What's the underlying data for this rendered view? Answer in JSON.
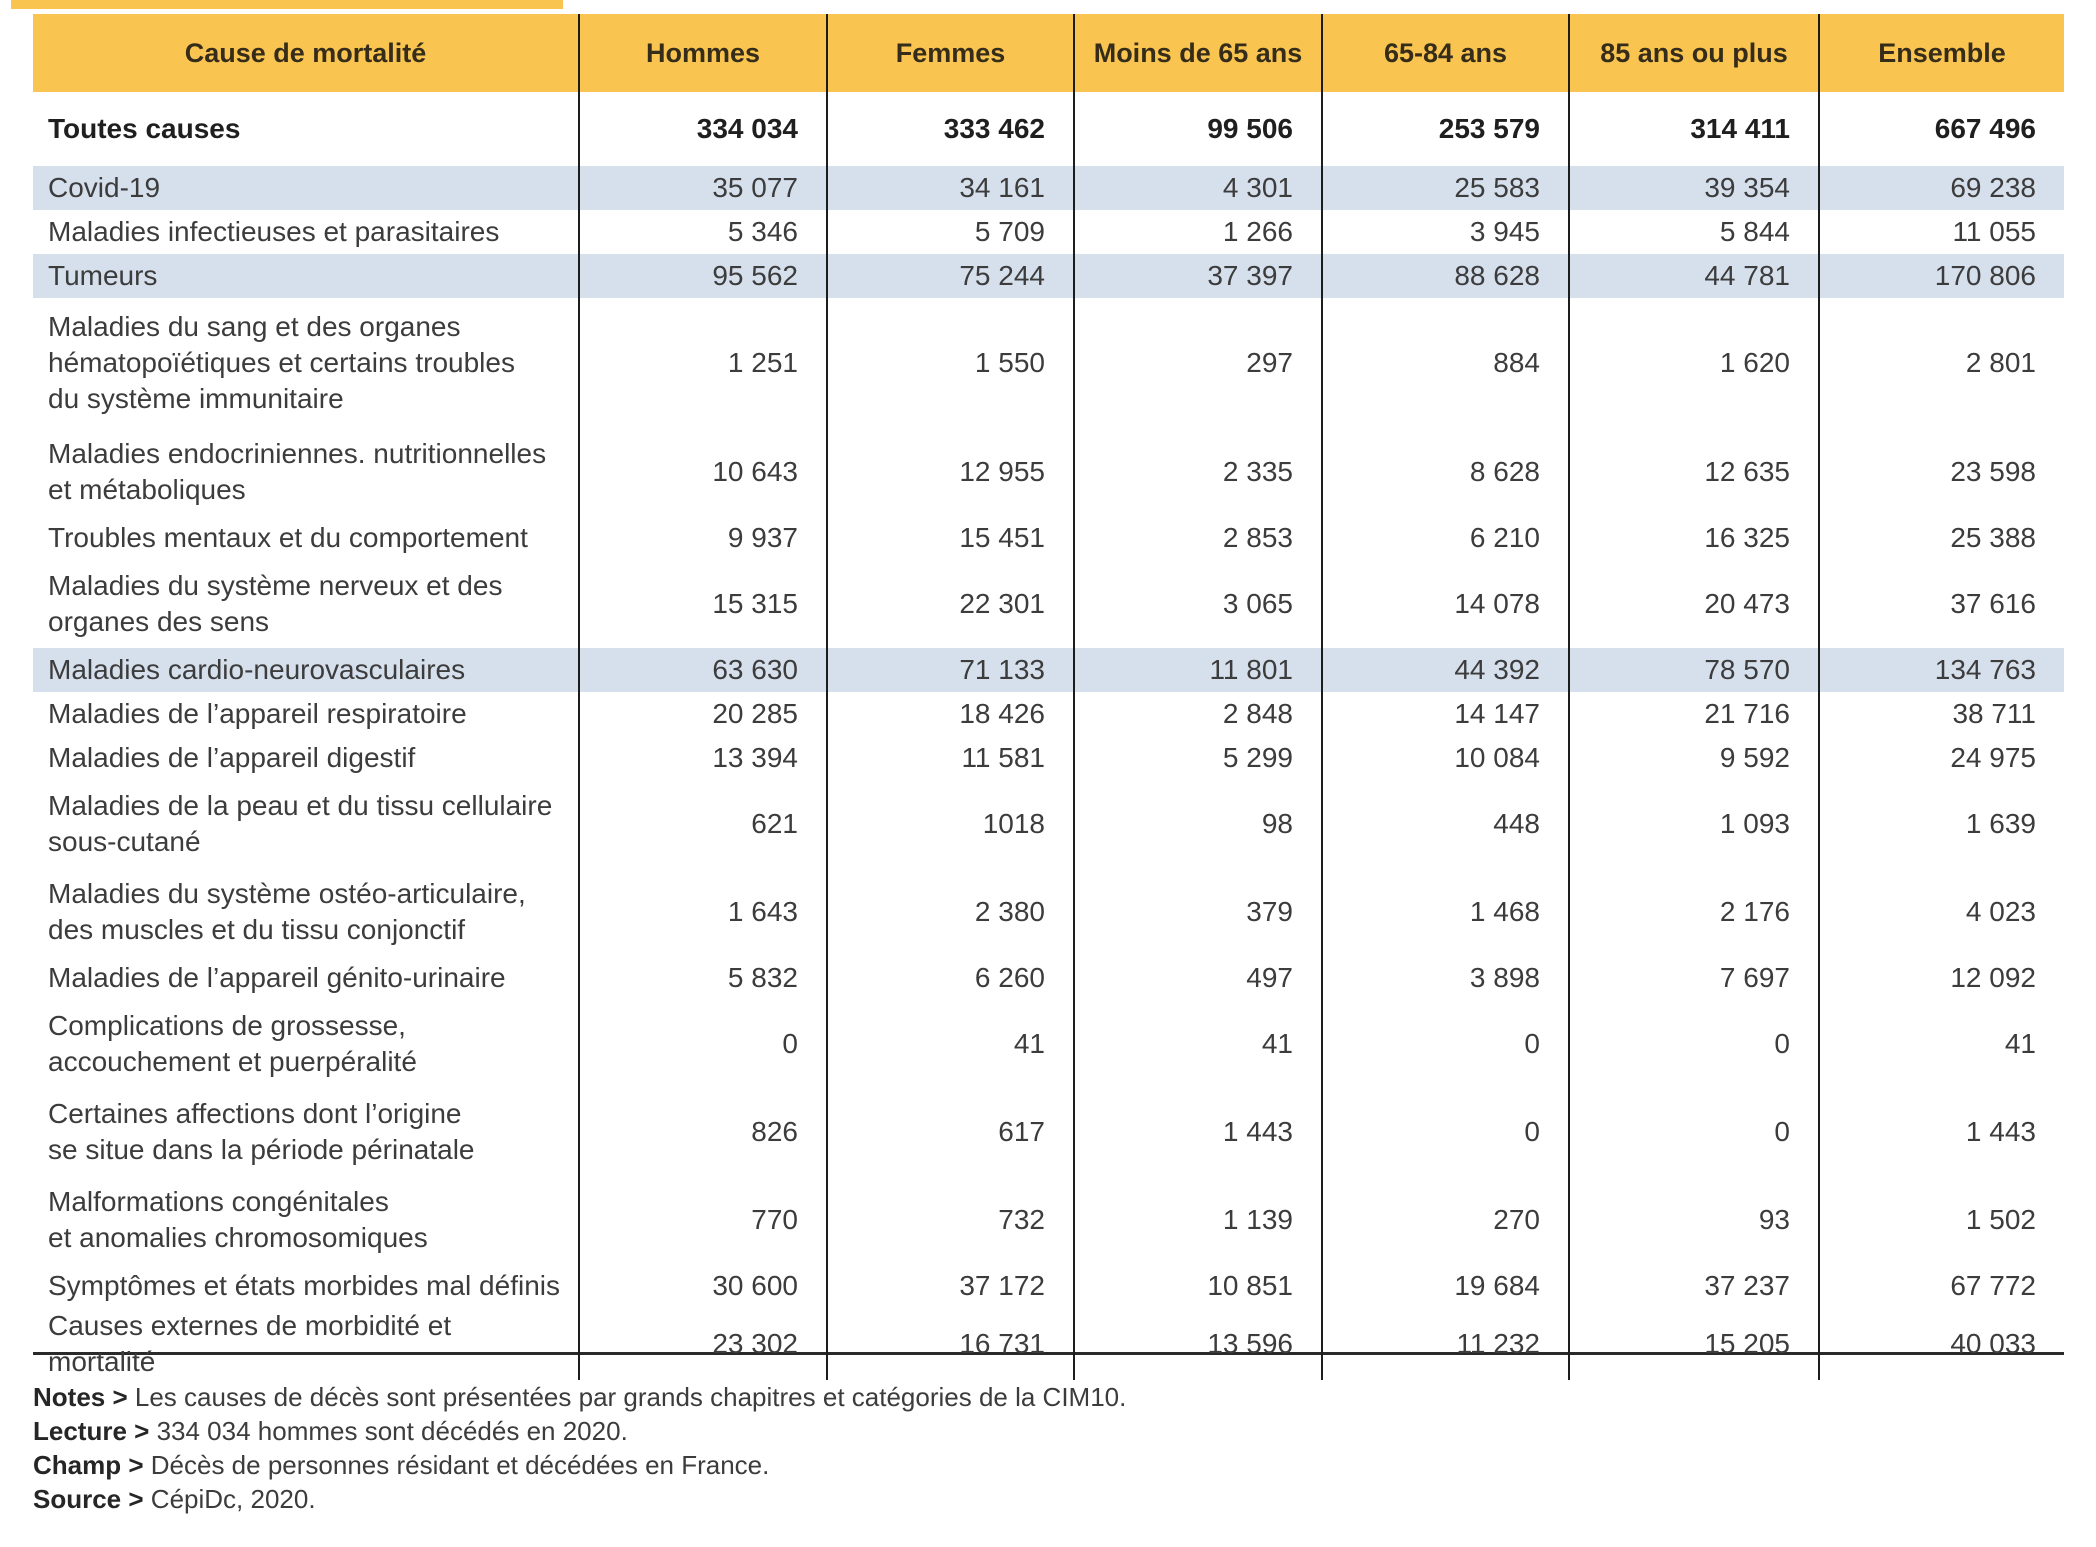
{
  "colors": {
    "header_bg": "#F9C550",
    "highlight_row_bg": "#D6DFEC",
    "accent_strip": "#F9C550",
    "grid_line": "#1d1d1d"
  },
  "table": {
    "columns": [
      "Cause de mortalité",
      "Hommes",
      "Femmes",
      "Moins de 65 ans",
      "65-84 ans",
      "85 ans ou plus",
      "Ensemble"
    ],
    "total_row": {
      "label": "Toutes causes",
      "values": [
        "334 034",
        "333 462",
        "99 506",
        "253 579",
        "314 411",
        "667 496"
      ]
    },
    "rows": [
      {
        "label": "Covid-19",
        "values": [
          "35 077",
          "34 161",
          "4 301",
          "25 583",
          "39 354",
          "69 238"
        ],
        "highlight": true
      },
      {
        "label": "Maladies infectieuses et parasitaires",
        "values": [
          "5 346",
          "5 709",
          "1 266",
          "3 945",
          "5 844",
          "11 055"
        ],
        "highlight": false
      },
      {
        "label": "Tumeurs",
        "values": [
          "95 562",
          "75 244",
          "37 397",
          "88 628",
          "44 781",
          "170 806"
        ],
        "highlight": true
      },
      {
        "label": "Maladies du sang et des organes\nhématopoïétiques et certains troubles\ndu système immunitaire",
        "values": [
          "1 251",
          "1 550",
          "297",
          "884",
          "1 620",
          "2 801"
        ],
        "highlight": false
      },
      {
        "label": "Maladies endocriniennes. nutritionnelles\net métaboliques",
        "values": [
          "10 643",
          "12 955",
          "2 335",
          "8 628",
          "12 635",
          "23 598"
        ],
        "highlight": false
      },
      {
        "label": "Troubles mentaux et du comportement",
        "values": [
          "9 937",
          "15 451",
          "2 853",
          "6 210",
          "16 325",
          "25 388"
        ],
        "highlight": false
      },
      {
        "label": "Maladies du système nerveux et des\norganes des sens",
        "values": [
          "15 315",
          "22 301",
          "3 065",
          "14 078",
          "20 473",
          "37 616"
        ],
        "highlight": false
      },
      {
        "label": "Maladies cardio-neurovasculaires",
        "values": [
          "63 630",
          "71 133",
          "11 801",
          "44 392",
          "78 570",
          "134 763"
        ],
        "highlight": true
      },
      {
        "label": "Maladies de l’appareil respiratoire",
        "values": [
          "20 285",
          "18 426",
          "2 848",
          "14 147",
          "21 716",
          "38 711"
        ],
        "highlight": false
      },
      {
        "label": "Maladies de l’appareil digestif",
        "values": [
          "13 394",
          "11 581",
          "5 299",
          "10 084",
          "9 592",
          "24 975"
        ],
        "highlight": false
      },
      {
        "label": "Maladies de la peau et du tissu cellulaire\nsous-cutané",
        "values": [
          "621",
          "1018",
          "98",
          "448",
          "1 093",
          "1 639"
        ],
        "highlight": false
      },
      {
        "label": "Maladies du système ostéo-articulaire,\ndes muscles et du tissu conjonctif",
        "values": [
          "1 643",
          "2 380",
          "379",
          "1 468",
          "2 176",
          "4 023"
        ],
        "highlight": false
      },
      {
        "label": "Maladies de l’appareil génito-urinaire",
        "values": [
          "5 832",
          "6 260",
          "497",
          "3 898",
          "7 697",
          "12 092"
        ],
        "highlight": false
      },
      {
        "label": "Complications de grossesse,\naccouchement et puerpéralité",
        "values": [
          "0",
          "41",
          "41",
          "0",
          "0",
          "41"
        ],
        "highlight": false
      },
      {
        "label": "Certaines affections dont l’origine\nse situe dans la période périnatale",
        "values": [
          "826",
          "617",
          "1 443",
          "0",
          "0",
          "1 443"
        ],
        "highlight": false
      },
      {
        "label": "Malformations congénitales\net anomalies chromosomiques",
        "values": [
          "770",
          "732",
          "1 139",
          "270",
          "93",
          "1 502"
        ],
        "highlight": false
      },
      {
        "label": "Symptômes et états morbides mal définis",
        "values": [
          "30 600",
          "37 172",
          "10 851",
          "19 684",
          "37 237",
          "67 772"
        ],
        "highlight": false
      },
      {
        "label": "Causes externes de morbidité et mortalité",
        "values": [
          "23 302",
          "16 731",
          "13 596",
          "11 232",
          "15 205",
          "40 033"
        ],
        "highlight": false
      }
    ]
  },
  "notes": [
    {
      "label": "Notes >",
      "text": "Les causes de décès sont présentées par grands chapitres et catégories de la CIM10."
    },
    {
      "label": "Lecture >",
      "text": "334 034 hommes sont décédés en 2020."
    },
    {
      "label": "Champ >",
      "text": "Décès de personnes résidant et décédées en France."
    },
    {
      "label": "Source >",
      "text": "CépiDc, 2020."
    }
  ]
}
